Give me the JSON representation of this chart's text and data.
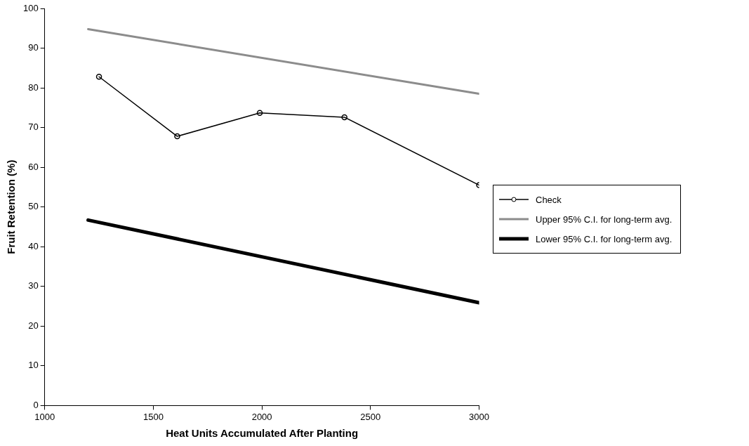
{
  "chart_data": {
    "type": "line",
    "xlabel": "Heat Units Accumulated After Planting",
    "ylabel": "Fruit Retention (%)",
    "xlim": [
      1000,
      3000
    ],
    "xticks": [
      1000,
      1500,
      2000,
      2500,
      3000
    ],
    "ylim": [
      0,
      100
    ],
    "yticks": [
      0,
      10,
      20,
      30,
      40,
      50,
      60,
      70,
      80,
      90,
      100
    ],
    "grid": false,
    "legend": "right",
    "series": [
      {
        "name": "Check",
        "color": "#000000",
        "x": [
          1250,
          1610,
          1990,
          2380,
          3000
        ],
        "values": [
          82.8,
          67.8,
          73.7,
          72.6,
          55.5
        ],
        "marker": "circle"
      },
      {
        "name": "Upper 95% C.I. for long-term avg.",
        "color": "#8c8c8c",
        "x": [
          1200,
          3000
        ],
        "values": [
          94.8,
          78.5
        ],
        "marker": "none"
      },
      {
        "name": "Lower 95% C.I. for long-term avg.",
        "color": "#000000",
        "x": [
          1200,
          3000
        ],
        "values": [
          46.7,
          25.9
        ],
        "marker": "none"
      }
    ]
  }
}
